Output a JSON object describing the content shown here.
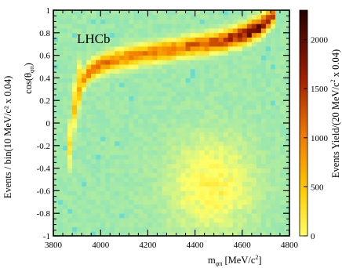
{
  "chart_data": {
    "type": "heatmap",
    "watermark": "LHCb",
    "xlabel": {
      "main": "m",
      "sub": "φπ",
      "rest": " [MeV/c",
      "sup": "2",
      "close": "]"
    },
    "ylabel": {
      "main": "cos(θ",
      "sub": "φπ",
      "close": ")",
      "leading": "Events / bin(10 MeV/c² x 0.04)"
    },
    "zlabel": {
      "main": "Events Yield/(20 MeV/c",
      "sup": "2",
      "rest": " x 0.04)"
    },
    "xlim": [
      3800,
      4800
    ],
    "ylim": [
      -1,
      1
    ],
    "zlim": [
      0,
      2300
    ],
    "x_ticks": [
      "3800",
      "4000",
      "4200",
      "4400",
      "4600",
      "4800"
    ],
    "y_ticks": [
      "-1",
      "-0.8",
      "-0.6",
      "-0.4",
      "-0.2",
      "0",
      "0.2",
      "0.4",
      "0.6",
      "0.8",
      "1"
    ],
    "z_ticks": [
      "0",
      "500",
      "1000",
      "1500",
      "2000"
    ],
    "z_tick_values": [
      0,
      500,
      1000,
      1500,
      2000
    ],
    "background_level": 160,
    "colormap": [
      "#6bdcd0",
      "#ffff66",
      "#ffcc00",
      "#f07800",
      "#a01e00",
      "#240000"
    ],
    "band": {
      "x_start": 3860,
      "x_end": 4745,
      "curve": [
        {
          "x": 3860,
          "y": -0.35
        },
        {
          "x": 3900,
          "y": 0.3
        },
        {
          "x": 3950,
          "y": 0.45
        },
        {
          "x": 4000,
          "y": 0.52
        },
        {
          "x": 4100,
          "y": 0.58
        },
        {
          "x": 4200,
          "y": 0.62
        },
        {
          "x": 4300,
          "y": 0.65
        },
        {
          "x": 4400,
          "y": 0.69
        },
        {
          "x": 4500,
          "y": 0.72
        },
        {
          "x": 4600,
          "y": 0.78
        },
        {
          "x": 4680,
          "y": 0.86
        },
        {
          "x": 4745,
          "y": 1.0
        }
      ],
      "intensity": [
        {
          "x": 3860,
          "z": 500
        },
        {
          "x": 3950,
          "z": 1200
        },
        {
          "x": 4100,
          "z": 1100
        },
        {
          "x": 4300,
          "z": 1200
        },
        {
          "x": 4500,
          "z": 1500
        },
        {
          "x": 4650,
          "z": 2000
        },
        {
          "x": 4745,
          "z": 1500
        }
      ]
    },
    "blob": {
      "x": 4470,
      "y": -0.55,
      "z": 400
    }
  }
}
